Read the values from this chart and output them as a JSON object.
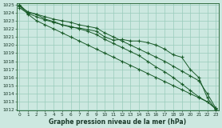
{
  "title": "Graphe pression niveau de la mer (hPa)",
  "bg_color": "#cce8e0",
  "grid_color": "#99ccbb",
  "line_color": "#1a5c2a",
  "marker_color": "#1a5c2a",
  "x_ticks": [
    0,
    1,
    2,
    3,
    4,
    5,
    6,
    7,
    8,
    9,
    10,
    11,
    12,
    13,
    14,
    15,
    16,
    17,
    18,
    19,
    20,
    21,
    22,
    23
  ],
  "y_min": 1012,
  "y_max": 1025,
  "series": [
    [
      1024.8,
      1024.1,
      1023.8,
      1023.2,
      1022.9,
      1022.5,
      1022.2,
      1022.1,
      1021.9,
      1021.7,
      1021.0,
      1020.6,
      1020.7,
      1020.5,
      1020.5,
      1020.3,
      1020.0,
      1019.5,
      1018.8,
      1018.5,
      1017.0,
      1016.0,
      1013.5,
      1012.0
    ],
    [
      1025.0,
      1024.0,
      1023.8,
      1023.5,
      1023.2,
      1023.0,
      1022.8,
      1022.5,
      1022.3,
      1022.1,
      1021.5,
      1021.0,
      1020.5,
      1020.0,
      1019.5,
      1019.0,
      1018.5,
      1018.0,
      1017.4,
      1016.8,
      1016.2,
      1015.6,
      1014.0,
      1012.2
    ],
    [
      1024.6,
      1023.9,
      1023.5,
      1023.1,
      1022.8,
      1022.5,
      1022.3,
      1022.0,
      1021.7,
      1021.3,
      1020.7,
      1020.2,
      1019.7,
      1019.2,
      1018.7,
      1018.0,
      1017.3,
      1016.7,
      1016.0,
      1015.2,
      1014.4,
      1013.6,
      1013.0,
      1012.1
    ],
    [
      1024.9,
      1023.8,
      1023.0,
      1022.5,
      1022.0,
      1021.5,
      1021.0,
      1020.5,
      1020.0,
      1019.5,
      1019.0,
      1018.5,
      1018.0,
      1017.5,
      1017.0,
      1016.5,
      1016.0,
      1015.5,
      1015.0,
      1014.5,
      1014.0,
      1013.5,
      1013.0,
      1012.2
    ]
  ],
  "tick_fontsize": 4.2,
  "xlabel_fontsize": 5.5,
  "linewidth": 0.7,
  "markersize": 3.5,
  "markeredgewidth": 0.8
}
